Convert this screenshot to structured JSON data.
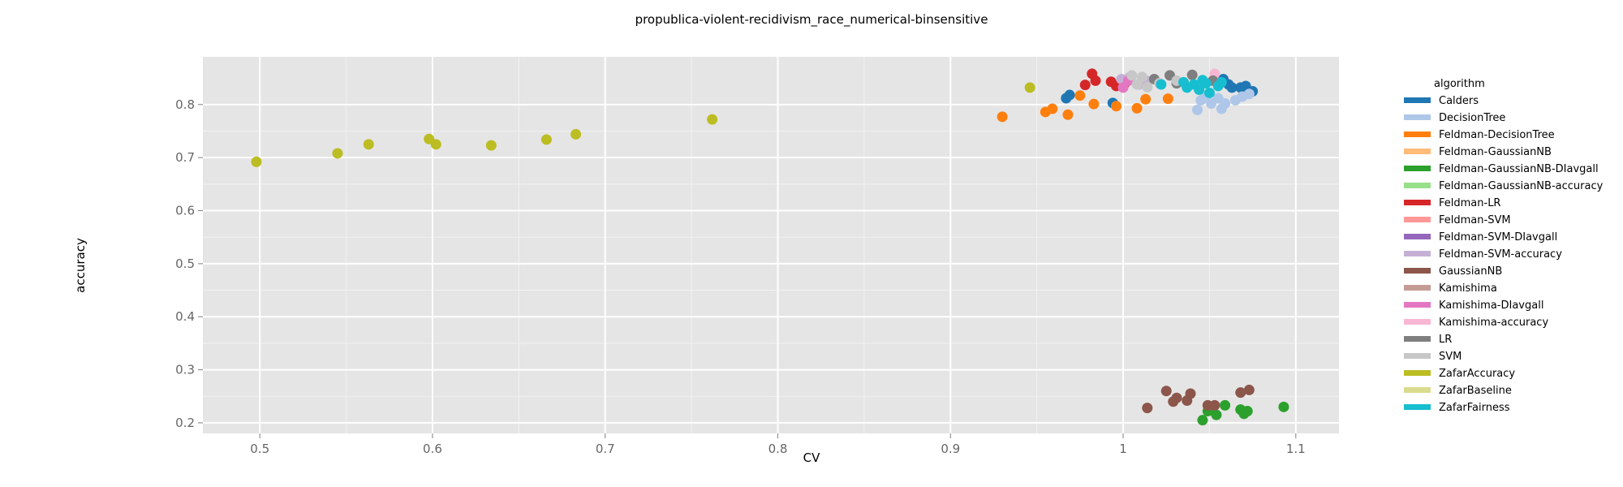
{
  "chart_data": {
    "type": "scatter",
    "title": "propublica-violent-recidivism_race_numerical-binsensitive",
    "xlabel": "CV",
    "ylabel": "accuracy",
    "xlim": [
      0.467,
      1.125
    ],
    "ylim": [
      0.18,
      0.89
    ],
    "xticks": [
      0.5,
      0.6,
      0.7,
      0.8,
      0.9,
      1.0,
      1.1
    ],
    "yticks": [
      0.2,
      0.3,
      0.4,
      0.5,
      0.6,
      0.7,
      0.8
    ],
    "grid": true,
    "legend_title": "algorithm",
    "legend_position": "right",
    "series": [
      {
        "name": "Calders",
        "color": "#1f77b4",
        "points": [
          [
            0.967,
            0.812
          ],
          [
            0.969,
            0.818
          ],
          [
            0.994,
            0.803
          ],
          [
            1.058,
            0.848
          ],
          [
            1.061,
            0.838
          ],
          [
            1.063,
            0.832
          ],
          [
            1.068,
            0.832
          ],
          [
            1.071,
            0.835
          ],
          [
            1.075,
            0.825
          ],
          [
            1.072,
            0.822
          ]
        ]
      },
      {
        "name": "DecisionTree",
        "color": "#aec7e8",
        "points": [
          [
            1.043,
            0.79
          ],
          [
            1.045,
            0.808
          ],
          [
            1.048,
            0.815
          ],
          [
            1.051,
            0.802
          ],
          [
            1.055,
            0.812
          ],
          [
            1.057,
            0.792
          ],
          [
            1.059,
            0.802
          ],
          [
            1.065,
            0.808
          ],
          [
            1.069,
            0.815
          ],
          [
            1.073,
            0.82
          ]
        ]
      },
      {
        "name": "Feldman-DecisionTree",
        "color": "#ff7f0e",
        "points": [
          [
            0.93,
            0.777
          ],
          [
            0.955,
            0.786
          ],
          [
            0.959,
            0.792
          ],
          [
            0.968,
            0.781
          ],
          [
            0.975,
            0.817
          ],
          [
            0.983,
            0.801
          ],
          [
            0.996,
            0.797
          ],
          [
            1.008,
            0.793
          ],
          [
            1.013,
            0.81
          ],
          [
            1.026,
            0.811
          ]
        ]
      },
      {
        "name": "Feldman-GaussianNB",
        "color": "#ffbb78",
        "points": []
      },
      {
        "name": "Feldman-GaussianNB-DIavgall",
        "color": "#2ca02c",
        "points": [
          [
            1.046,
            0.205
          ],
          [
            1.049,
            0.222
          ],
          [
            1.052,
            0.229
          ],
          [
            1.054,
            0.215
          ],
          [
            1.059,
            0.233
          ],
          [
            1.068,
            0.225
          ],
          [
            1.07,
            0.217
          ],
          [
            1.072,
            0.222
          ],
          [
            1.093,
            0.23
          ]
        ]
      },
      {
        "name": "Feldman-GaussianNB-accuracy",
        "color": "#98df8a",
        "points": []
      },
      {
        "name": "Feldman-LR",
        "color": "#d62728",
        "points": [
          [
            0.978,
            0.837
          ],
          [
            0.982,
            0.858
          ],
          [
            0.984,
            0.845
          ],
          [
            0.993,
            0.843
          ],
          [
            0.996,
            0.835
          ],
          [
            1.001,
            0.84
          ]
        ]
      },
      {
        "name": "Feldman-SVM",
        "color": "#ff9896",
        "points": []
      },
      {
        "name": "Feldman-SVM-DIavgall",
        "color": "#9467bd",
        "points": []
      },
      {
        "name": "Feldman-SVM-accuracy",
        "color": "#c5b0d5",
        "points": [
          [
            0.999,
            0.848
          ],
          [
            1.004,
            0.852
          ],
          [
            1.009,
            0.838
          ],
          [
            1.014,
            0.844
          ]
        ]
      },
      {
        "name": "GaussianNB",
        "color": "#8c564b",
        "points": [
          [
            1.014,
            0.228
          ],
          [
            1.025,
            0.26
          ],
          [
            1.029,
            0.24
          ],
          [
            1.031,
            0.247
          ],
          [
            1.037,
            0.242
          ],
          [
            1.039,
            0.255
          ],
          [
            1.049,
            0.233
          ],
          [
            1.053,
            0.233
          ],
          [
            1.068,
            0.257
          ],
          [
            1.073,
            0.262
          ]
        ]
      },
      {
        "name": "Kamishima",
        "color": "#c49c94",
        "points": []
      },
      {
        "name": "Kamishima-DIavgall",
        "color": "#e377c2",
        "points": [
          [
            1.0,
            0.832
          ],
          [
            1.003,
            0.845
          ]
        ]
      },
      {
        "name": "Kamishima-accuracy",
        "color": "#f7b6d2",
        "points": [
          [
            1.053,
            0.858
          ]
        ]
      },
      {
        "name": "LR",
        "color": "#7f7f7f",
        "points": [
          [
            1.018,
            0.848
          ],
          [
            1.027,
            0.855
          ],
          [
            1.04,
            0.856
          ],
          [
            1.031,
            0.84
          ],
          [
            1.052,
            0.845
          ]
        ]
      },
      {
        "name": "SVM",
        "color": "#c7c7c7",
        "points": [
          [
            1.005,
            0.855
          ],
          [
            1.008,
            0.838
          ],
          [
            1.011,
            0.852
          ],
          [
            1.014,
            0.833
          ],
          [
            1.021,
            0.84
          ],
          [
            1.031,
            0.845
          ]
        ]
      },
      {
        "name": "ZafarAccuracy",
        "color": "#bcbd22",
        "points": [
          [
            0.498,
            0.692
          ],
          [
            0.545,
            0.708
          ],
          [
            0.563,
            0.725
          ],
          [
            0.598,
            0.735
          ],
          [
            0.602,
            0.725
          ],
          [
            0.634,
            0.723
          ],
          [
            0.666,
            0.734
          ],
          [
            0.683,
            0.744
          ],
          [
            0.762,
            0.772
          ],
          [
            0.946,
            0.832
          ]
        ]
      },
      {
        "name": "ZafarBaseline",
        "color": "#dbdb8d",
        "points": []
      },
      {
        "name": "ZafarFairness",
        "color": "#17becf",
        "points": [
          [
            1.022,
            0.838
          ],
          [
            1.035,
            0.842
          ],
          [
            1.037,
            0.832
          ],
          [
            1.041,
            0.838
          ],
          [
            1.044,
            0.828
          ],
          [
            1.046,
            0.846
          ],
          [
            1.048,
            0.84
          ],
          [
            1.05,
            0.822
          ],
          [
            1.055,
            0.835
          ],
          [
            1.057,
            0.842
          ]
        ]
      }
    ]
  }
}
